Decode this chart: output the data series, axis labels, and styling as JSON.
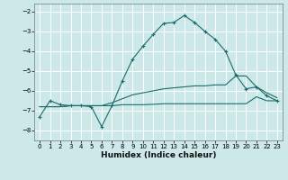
{
  "xlabel": "Humidex (Indice chaleur)",
  "bg_color": "#cce8e8",
  "grid_color": "#ffffff",
  "line_color": "#1b6b6b",
  "xlim": [
    -0.5,
    23.5
  ],
  "ylim": [
    -8.5,
    -1.6
  ],
  "xticks": [
    0,
    1,
    2,
    3,
    4,
    5,
    6,
    7,
    8,
    9,
    10,
    11,
    12,
    13,
    14,
    15,
    16,
    17,
    18,
    19,
    20,
    21,
    22,
    23
  ],
  "yticks": [
    -8,
    -7,
    -6,
    -5,
    -4,
    -3,
    -2
  ],
  "curve1_x": [
    0,
    1,
    2,
    3,
    4,
    5,
    6,
    7,
    8,
    9,
    10,
    11,
    12,
    13,
    14,
    15,
    16,
    17,
    18,
    19,
    20,
    21,
    22,
    23
  ],
  "curve1_y": [
    -7.3,
    -6.5,
    -6.7,
    -6.75,
    -6.75,
    -6.8,
    -7.8,
    -6.75,
    -5.5,
    -4.4,
    -3.75,
    -3.15,
    -2.6,
    -2.55,
    -2.2,
    -2.55,
    -3.0,
    -3.4,
    -4.0,
    -5.2,
    -5.9,
    -5.8,
    -6.25,
    -6.5
  ],
  "curve2_x": [
    0,
    1,
    2,
    3,
    4,
    5,
    6,
    7,
    8,
    9,
    10,
    11,
    12,
    13,
    14,
    15,
    16,
    17,
    18,
    19,
    20,
    21,
    22,
    23
  ],
  "curve2_y": [
    -6.8,
    -6.8,
    -6.8,
    -6.75,
    -6.75,
    -6.75,
    -6.75,
    -6.6,
    -6.4,
    -6.2,
    -6.1,
    -6.0,
    -5.9,
    -5.85,
    -5.8,
    -5.75,
    -5.75,
    -5.7,
    -5.7,
    -5.25,
    -5.25,
    -5.8,
    -6.1,
    -6.35
  ],
  "curve3_x": [
    0,
    1,
    2,
    3,
    4,
    5,
    6,
    7,
    8,
    9,
    10,
    11,
    12,
    13,
    14,
    15,
    16,
    17,
    18,
    19,
    20,
    21,
    22,
    23
  ],
  "curve3_y": [
    -6.8,
    -6.8,
    -6.8,
    -6.75,
    -6.75,
    -6.75,
    -6.75,
    -6.75,
    -6.7,
    -6.7,
    -6.7,
    -6.68,
    -6.65,
    -6.65,
    -6.65,
    -6.65,
    -6.65,
    -6.65,
    -6.65,
    -6.65,
    -6.65,
    -6.3,
    -6.5,
    -6.5
  ]
}
